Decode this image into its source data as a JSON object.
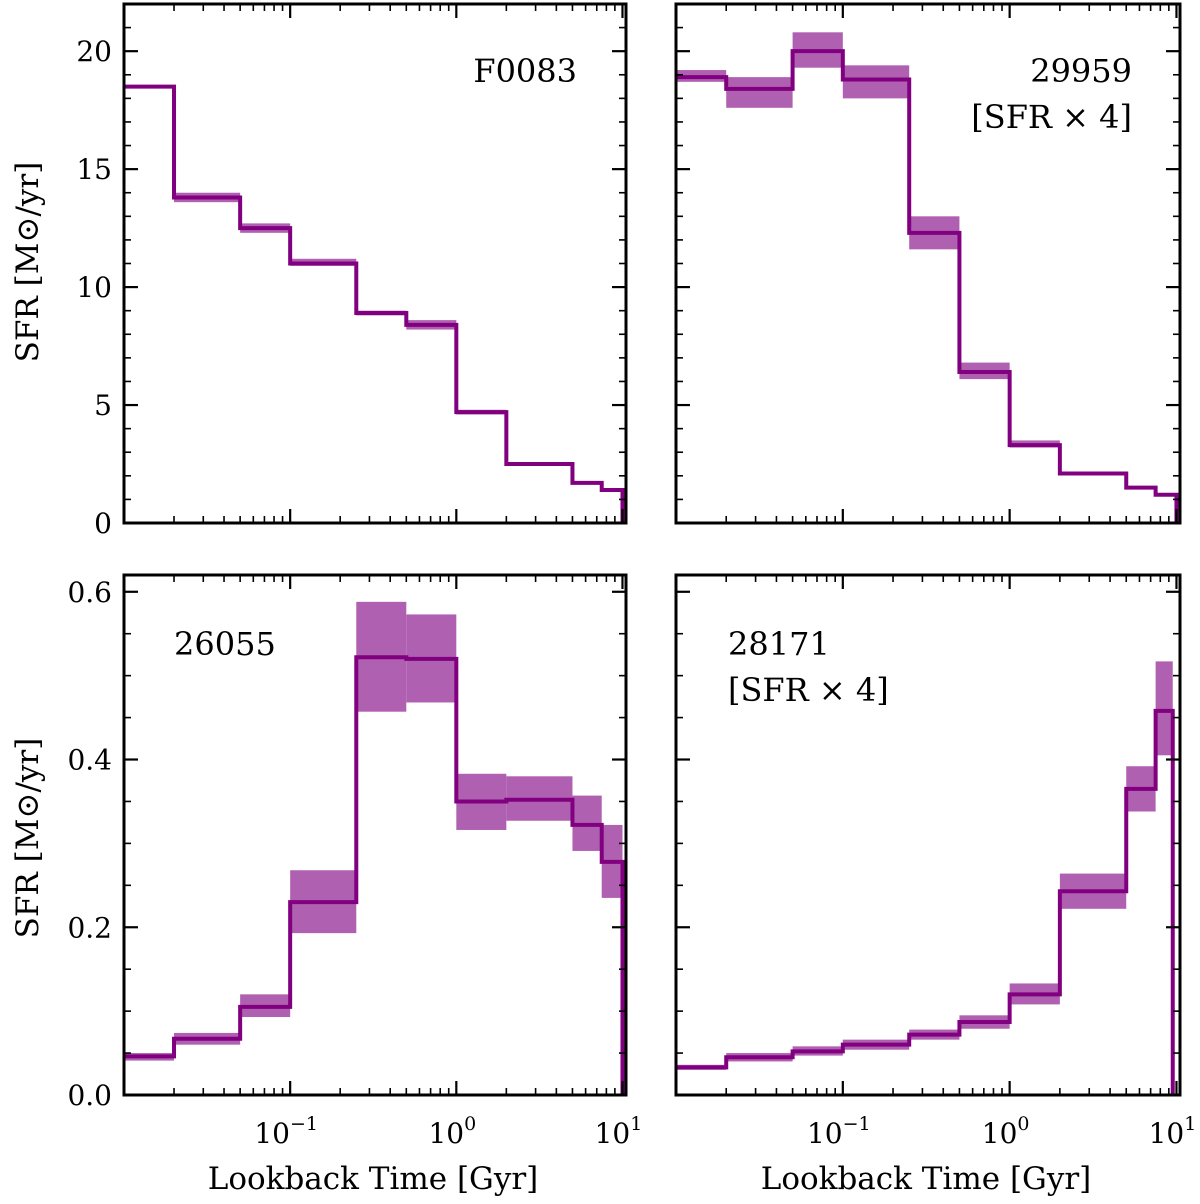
{
  "colors": {
    "line": "#800080",
    "band": "#b060b0",
    "axis": "#000000"
  },
  "figure_xlabel": "Lookback Time [Gyr]",
  "figure_ylabel": "SFR [M⊙/yr]",
  "chart_data": [
    {
      "type": "line",
      "id": "F0083",
      "title": "F0083",
      "annotation_lines": [
        "F0083"
      ],
      "xscale": "log",
      "xlim": [
        0.01,
        10.5
      ],
      "ylim": [
        0,
        22
      ],
      "yticks": [
        0,
        5,
        10,
        15,
        20
      ],
      "ylabel": "SFR [M⊙/yr]",
      "xlabel": "",
      "bin_edges": [
        0.01,
        0.02,
        0.05,
        0.1,
        0.25,
        0.5,
        1,
        2,
        5,
        7.5,
        10
      ],
      "values": [
        18.5,
        13.8,
        12.5,
        11.0,
        8.9,
        8.4,
        4.7,
        2.5,
        1.7,
        1.4
      ],
      "lower": [
        18.5,
        13.6,
        12.3,
        10.9,
        8.8,
        8.2,
        4.6,
        2.5,
        1.7,
        1.4
      ],
      "upper": [
        18.5,
        14.0,
        12.7,
        11.2,
        9.0,
        8.6,
        4.8,
        2.5,
        1.7,
        1.4
      ]
    },
    {
      "type": "line",
      "id": "29959",
      "title": "29959",
      "annotation_lines": [
        "29959",
        "[SFR × 4]"
      ],
      "xscale": "log",
      "xlim": [
        0.01,
        10.5
      ],
      "ylim": [
        0,
        22
      ],
      "yticks": [
        0,
        5,
        10,
        15,
        20
      ],
      "ylabel": "",
      "xlabel": "",
      "bin_edges": [
        0.01,
        0.02,
        0.05,
        0.1,
        0.25,
        0.5,
        1,
        2,
        5,
        7.5,
        10
      ],
      "values": [
        18.9,
        18.4,
        20.0,
        18.8,
        12.3,
        6.4,
        3.3,
        2.1,
        1.5,
        1.2
      ],
      "lower": [
        18.7,
        17.6,
        19.3,
        18.0,
        11.6,
        6.1,
        3.2,
        2.1,
        1.5,
        1.2
      ],
      "upper": [
        19.2,
        18.9,
        20.8,
        19.4,
        13.0,
        6.8,
        3.5,
        2.1,
        1.5,
        1.2
      ]
    },
    {
      "type": "line",
      "id": "26055",
      "title": "26055",
      "annotation_lines": [
        "26055"
      ],
      "xscale": "log",
      "xlim": [
        0.01,
        10.5
      ],
      "ylim": [
        0,
        0.62
      ],
      "yticks": [
        0.0,
        0.2,
        0.4,
        0.6
      ],
      "ylabel": "SFR [M⊙/yr]",
      "xlabel": "Lookback Time [Gyr]",
      "bin_edges": [
        0.01,
        0.02,
        0.05,
        0.1,
        0.25,
        0.5,
        1,
        2,
        5,
        7.5,
        10
      ],
      "values": [
        0.046,
        0.067,
        0.105,
        0.23,
        0.522,
        0.52,
        0.35,
        0.352,
        0.322,
        0.278
      ],
      "lower": [
        0.041,
        0.06,
        0.093,
        0.193,
        0.457,
        0.468,
        0.316,
        0.327,
        0.291,
        0.235
      ],
      "upper": [
        0.05,
        0.074,
        0.12,
        0.268,
        0.588,
        0.573,
        0.383,
        0.38,
        0.357,
        0.322
      ]
    },
    {
      "type": "line",
      "id": "28171",
      "title": "28171",
      "annotation_lines": [
        "28171",
        "[SFR × 4]"
      ],
      "xscale": "log",
      "xlim": [
        0.01,
        10.5
      ],
      "ylim": [
        0,
        0.62
      ],
      "yticks": [
        0.0,
        0.2,
        0.4,
        0.6
      ],
      "ylabel": "",
      "xlabel": "Lookback Time [Gyr]",
      "bin_edges": [
        0.01,
        0.02,
        0.05,
        0.1,
        0.25,
        0.5,
        1,
        2,
        5,
        7.5,
        9.5
      ],
      "values": [
        0.033,
        0.045,
        0.052,
        0.06,
        0.072,
        0.087,
        0.12,
        0.243,
        0.365,
        0.458
      ],
      "lower": [
        0.03,
        0.04,
        0.047,
        0.054,
        0.066,
        0.079,
        0.108,
        0.222,
        0.338,
        0.405
      ],
      "upper": [
        0.036,
        0.05,
        0.058,
        0.066,
        0.078,
        0.095,
        0.133,
        0.264,
        0.392,
        0.517
      ]
    }
  ],
  "x_major_ticks": [
    {
      "value": 0.1,
      "base": "10",
      "exp": "−1"
    },
    {
      "value": 1,
      "base": "10",
      "exp": "0"
    },
    {
      "value": 10,
      "base": "10",
      "exp": "1"
    }
  ]
}
